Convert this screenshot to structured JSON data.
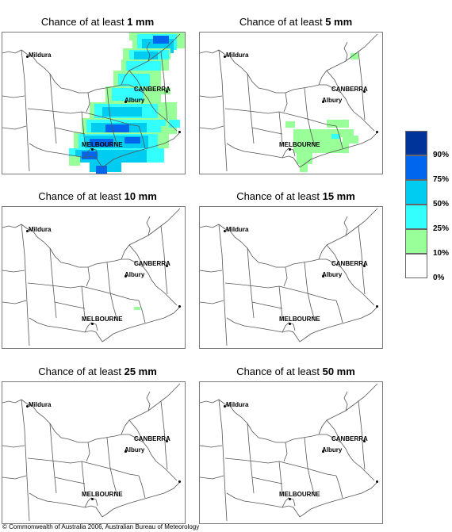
{
  "panels": [
    {
      "title_prefix": "Chance of at least ",
      "amount": "1 mm",
      "probability_coverage": "high"
    },
    {
      "title_prefix": "Chance of at least ",
      "amount": "5 mm",
      "probability_coverage": "low"
    },
    {
      "title_prefix": "Chance of at least ",
      "amount": "10 mm",
      "probability_coverage": "trace"
    },
    {
      "title_prefix": "Chance of at least ",
      "amount": "15 mm",
      "probability_coverage": "none"
    },
    {
      "title_prefix": "Chance of at least ",
      "amount": "25 mm",
      "probability_coverage": "none"
    },
    {
      "title_prefix": "Chance of at least ",
      "amount": "50 mm",
      "probability_coverage": "none"
    }
  ],
  "places": {
    "mildura": "Mildura",
    "canberra": "CANBERRA",
    "albury": "Albury",
    "melbourne": "MELBOURNE"
  },
  "legend": {
    "labels": [
      "90%",
      "75%",
      "50%",
      "25%",
      "10%",
      "0%"
    ],
    "colors": [
      "#00349a",
      "#0066ee",
      "#00ccf2",
      "#33ffff",
      "#99ff99",
      "#ffffff"
    ]
  },
  "copyright": "© Commonwealth of Australia 2006, Australian Bureau of Meteorology"
}
